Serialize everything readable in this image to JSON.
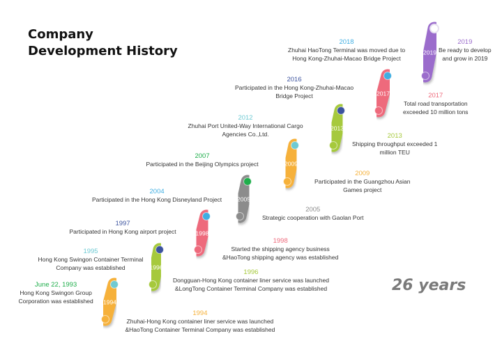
{
  "title_line1": "Company",
  "title_line2": "Development History",
  "duration": "26 years",
  "milestones": [
    {
      "year": "1993",
      "color": "#1fae4b"
    },
    {
      "year": "1994",
      "color": "#f6b13a"
    },
    {
      "year": "1995",
      "color": "#6fcad3"
    },
    {
      "year": "1996",
      "color": "#a6c93c"
    },
    {
      "year": "1997",
      "color": "#3c539e"
    },
    {
      "year": "1998",
      "color": "#ee6a7c"
    },
    {
      "year": "2004",
      "color": "#3faee2"
    },
    {
      "year": "2005",
      "color": "#8c8c8c"
    },
    {
      "year": "2007",
      "color": "#1fae4b"
    },
    {
      "year": "2009",
      "color": "#f6b13a"
    },
    {
      "year": "2012",
      "color": "#6fcad3"
    },
    {
      "year": "2013",
      "color": "#a6c93c"
    },
    {
      "year": "2016",
      "color": "#3c539e"
    },
    {
      "year": "2017",
      "color": "#ee6a7c"
    },
    {
      "year": "2018",
      "color": "#3faee2"
    },
    {
      "year": "2019",
      "color": "#9b6ccc"
    }
  ],
  "annotations": [
    {
      "year": "June 22, 1993",
      "text": "Hong Kong Swingon Group\nCorporation was established",
      "color": "#1fae4b"
    },
    {
      "year": "1994",
      "text": "Zhuhai-Hong Kong container liner service was launched\n&HaoTong Container Terminal Company was established",
      "color": "#f6b13a"
    },
    {
      "year": "1995",
      "text": "Hong Kong Swingon Container Terminal\nCompany was established",
      "color": "#6fcad3"
    },
    {
      "year": "1996",
      "text": "Dongguan-Hong Kong container liner service was launched\n&LongTong Container Terminal Company was established",
      "color": "#a6c93c"
    },
    {
      "year": "1997",
      "text": "Participated in Hong Kong airport project",
      "color": "#3c539e"
    },
    {
      "year": "1998",
      "text": "Started the shipping agency business\n&HaoTong shipping agency was established",
      "color": "#ee6a7c"
    },
    {
      "year": "2004",
      "text": "Participated in the Hong Kong Disneyland Project",
      "color": "#3faee2"
    },
    {
      "year": "2005",
      "text": "Strategic cooperation with Gaolan Port",
      "color": "#8c8c8c"
    },
    {
      "year": "2007",
      "text": "Participated in the Beijing Olympics project",
      "color": "#1fae4b"
    },
    {
      "year": "2009",
      "text": "Participated in the Guangzhou Asian\nGames project",
      "color": "#f6b13a"
    },
    {
      "year": "2012",
      "text": "Zhuhai Port United-Way International Cargo\nAgencies Co.,Ltd.",
      "color": "#6fcad3"
    },
    {
      "year": "2013",
      "text": "Shipping throughput exceeded 1\nmillion TEU",
      "color": "#a6c93c"
    },
    {
      "year": "2016",
      "text": "Participated in the Hong Kong-Zhuhai-Macao\nBridge Project",
      "color": "#3c539e"
    },
    {
      "year": "2017",
      "text": "Total road transportation\nexceeded 10 million tons",
      "color": "#ee6a7c"
    },
    {
      "year": "2018",
      "text": "Zhuhai HaoTong Terminal was moved due to\nHong Kong-Zhuhai-Macao Bridge Project",
      "color": "#3faee2"
    },
    {
      "year": "2019",
      "text": "Be ready to develop\nand grow in 2019",
      "color": "#9b6ccc"
    }
  ]
}
